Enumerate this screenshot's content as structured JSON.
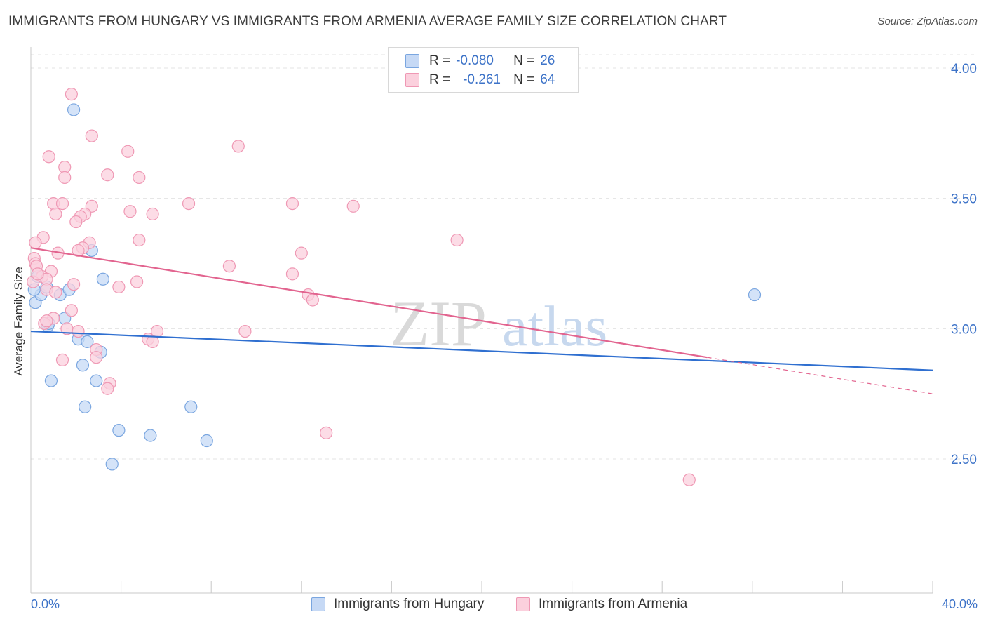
{
  "title": "IMMIGRANTS FROM HUNGARY VS IMMIGRANTS FROM ARMENIA AVERAGE FAMILY SIZE CORRELATION CHART",
  "source": "Source: ZipAtlas.com",
  "watermark": {
    "zip": "ZIP",
    "atlas": "atlas"
  },
  "colors": {
    "hungary_fill": "#c6d9f5",
    "hungary_stroke": "#7aa6e0",
    "hungary_line": "#2f6fd0",
    "armenia_fill": "#fbd0dd",
    "armenia_stroke": "#ef98b4",
    "armenia_line": "#e2648f",
    "axis_text": "#3d73c8"
  },
  "legend": {
    "r_label": "R =",
    "n_label": "N =",
    "hungary": {
      "r": "-0.080",
      "n": "26"
    },
    "armenia": {
      "r": "-0.261",
      "n": "64"
    }
  },
  "chart_data": {
    "type": "scatter",
    "title": "IMMIGRANTS FROM HUNGARY VS IMMIGRANTS FROM ARMENIA AVERAGE FAMILY SIZE CORRELATION CHART",
    "xlabel": "",
    "ylabel": "Average Family Size",
    "xlim": [
      0,
      40
    ],
    "ylim": [
      2.05,
      4.08
    ],
    "x_tick_labels": [
      "0.0%",
      "40.0%"
    ],
    "y_ticks": [
      2.5,
      3.0,
      3.5,
      4.0
    ],
    "y_tick_labels": [
      "2.50",
      "3.00",
      "3.50",
      "4.00"
    ],
    "grid": true,
    "legend_position": "top-center",
    "series": [
      {
        "name": "Immigrants from Hungary",
        "r": -0.08,
        "n": 26,
        "trend": {
          "x": [
            0,
            40
          ],
          "y": [
            2.99,
            2.84
          ]
        },
        "points": [
          [
            1.9,
            3.84
          ],
          [
            0.3,
            3.2
          ],
          [
            0.2,
            3.1
          ],
          [
            0.45,
            3.13
          ],
          [
            0.7,
            3.16
          ],
          [
            1.3,
            3.13
          ],
          [
            1.7,
            3.15
          ],
          [
            1.5,
            3.04
          ],
          [
            0.75,
            3.01
          ],
          [
            2.7,
            3.3
          ],
          [
            3.2,
            3.19
          ],
          [
            2.1,
            2.96
          ],
          [
            2.5,
            2.95
          ],
          [
            3.1,
            2.91
          ],
          [
            2.3,
            2.86
          ],
          [
            0.9,
            2.8
          ],
          [
            2.9,
            2.8
          ],
          [
            2.4,
            2.7
          ],
          [
            7.1,
            2.7
          ],
          [
            3.9,
            2.61
          ],
          [
            5.3,
            2.59
          ],
          [
            7.8,
            2.57
          ],
          [
            3.6,
            2.48
          ],
          [
            32.1,
            3.13
          ],
          [
            0.8,
            3.02
          ],
          [
            0.15,
            3.15
          ]
        ]
      },
      {
        "name": "Immigrants from Armenia",
        "r": -0.261,
        "n": 64,
        "trend": {
          "x": [
            0,
            30
          ],
          "y": [
            3.31,
            2.89
          ]
        },
        "trend_extension": {
          "x": [
            30,
            40
          ],
          "y": [
            2.89,
            2.75
          ]
        },
        "points": [
          [
            1.8,
            3.9
          ],
          [
            2.7,
            3.74
          ],
          [
            0.8,
            3.66
          ],
          [
            4.3,
            3.68
          ],
          [
            9.2,
            3.7
          ],
          [
            1.5,
            3.62
          ],
          [
            1.5,
            3.58
          ],
          [
            3.4,
            3.59
          ],
          [
            4.8,
            3.58
          ],
          [
            1.0,
            3.48
          ],
          [
            1.4,
            3.48
          ],
          [
            2.7,
            3.47
          ],
          [
            7.0,
            3.48
          ],
          [
            11.6,
            3.48
          ],
          [
            14.3,
            3.47
          ],
          [
            1.1,
            3.44
          ],
          [
            2.4,
            3.44
          ],
          [
            2.2,
            3.43
          ],
          [
            4.4,
            3.45
          ],
          [
            5.4,
            3.44
          ],
          [
            2.0,
            3.41
          ],
          [
            0.55,
            3.35
          ],
          [
            0.2,
            3.33
          ],
          [
            2.6,
            3.33
          ],
          [
            4.8,
            3.34
          ],
          [
            18.9,
            3.34
          ],
          [
            2.3,
            3.31
          ],
          [
            2.1,
            3.3
          ],
          [
            1.2,
            3.29
          ],
          [
            12.0,
            3.29
          ],
          [
            0.15,
            3.27
          ],
          [
            0.2,
            3.25
          ],
          [
            0.25,
            3.24
          ],
          [
            8.8,
            3.24
          ],
          [
            11.6,
            3.21
          ],
          [
            0.9,
            3.22
          ],
          [
            0.5,
            3.2
          ],
          [
            0.7,
            3.19
          ],
          [
            0.1,
            3.18
          ],
          [
            1.9,
            3.17
          ],
          [
            4.7,
            3.18
          ],
          [
            3.9,
            3.16
          ],
          [
            0.7,
            3.15
          ],
          [
            1.1,
            3.14
          ],
          [
            12.3,
            3.13
          ],
          [
            12.5,
            3.11
          ],
          [
            1.8,
            3.07
          ],
          [
            1.0,
            3.04
          ],
          [
            0.6,
            3.02
          ],
          [
            0.7,
            3.03
          ],
          [
            1.6,
            3.0
          ],
          [
            2.1,
            2.99
          ],
          [
            9.5,
            2.99
          ],
          [
            5.6,
            2.99
          ],
          [
            5.2,
            2.96
          ],
          [
            5.4,
            2.95
          ],
          [
            2.9,
            2.92
          ],
          [
            2.9,
            2.89
          ],
          [
            1.4,
            2.88
          ],
          [
            3.5,
            2.79
          ],
          [
            3.4,
            2.77
          ],
          [
            13.1,
            2.6
          ],
          [
            29.2,
            2.42
          ],
          [
            0.3,
            3.21
          ]
        ]
      }
    ]
  },
  "bottom_legend": {
    "hungary": "Immigrants from Hungary",
    "armenia": "Immigrants from Armenia"
  }
}
